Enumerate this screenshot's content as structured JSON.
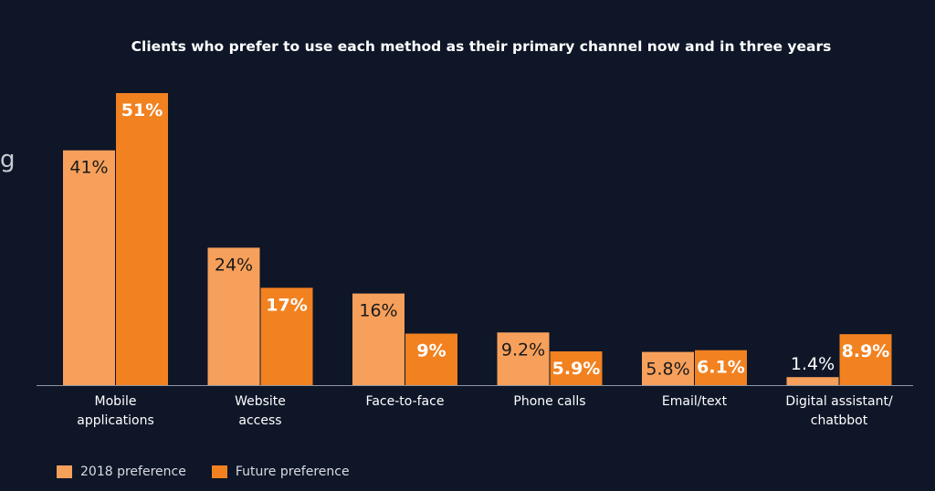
{
  "edge_fragment": "g",
  "colors": {
    "background": "#0e1628",
    "series_2018": "#f7a05b",
    "series_future": "#f28120"
  },
  "chart_data": {
    "type": "bar",
    "title": "Clients who prefer to use each method as their primary channel now and in three years",
    "categories": [
      [
        "Mobile",
        "applications"
      ],
      [
        "Website",
        "access"
      ],
      [
        "Face-to-face"
      ],
      [
        "Phone calls"
      ],
      [
        "Email/text"
      ],
      [
        "Digital assistant/",
        "chatbbot"
      ]
    ],
    "series": [
      {
        "name": "2018 preference",
        "color": "#f7a05b",
        "values": [
          41,
          24,
          16,
          9.2,
          5.8,
          1.4
        ],
        "labels": [
          "41%",
          "24%",
          "16%",
          "9.2%",
          "5.8%",
          "1.4%"
        ]
      },
      {
        "name": "Future preference",
        "color": "#f28120",
        "values": [
          51,
          17,
          9,
          5.9,
          6.1,
          8.9
        ],
        "labels": [
          "51%",
          "17%",
          "9%",
          "5.9%",
          "6.1%",
          "8.9%"
        ]
      }
    ],
    "ylim": [
      0,
      51
    ],
    "grid": false,
    "legend_position": "bottom-left"
  }
}
